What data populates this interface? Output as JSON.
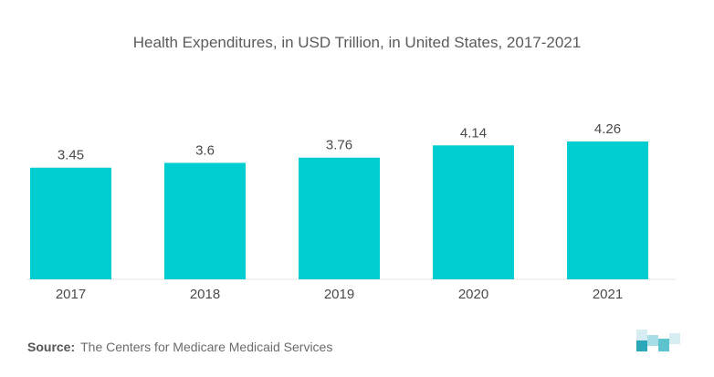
{
  "chart_data": {
    "type": "bar",
    "title": "Health Expenditures, in USD Trillion, in United States, 2017-2021",
    "categories": [
      "2017",
      "2018",
      "2019",
      "2020",
      "2021"
    ],
    "values": [
      3.45,
      3.6,
      3.76,
      4.14,
      4.26
    ],
    "value_labels": [
      "3.45",
      "3.6",
      "3.76",
      "4.14",
      "4.26"
    ],
    "xlabel": "",
    "ylabel": "",
    "ylim": [
      0,
      4.26
    ],
    "grid": false,
    "bar_color": "#00cdd0"
  },
  "source": {
    "label": "Source:",
    "text": "The Centers for Medicare Medicaid Services"
  },
  "logo": {
    "icon": "brand-logo-icon",
    "colors": [
      "#a8dfe6",
      "#5cc3cf",
      "#2aa7b8",
      "#d6eef2"
    ]
  }
}
